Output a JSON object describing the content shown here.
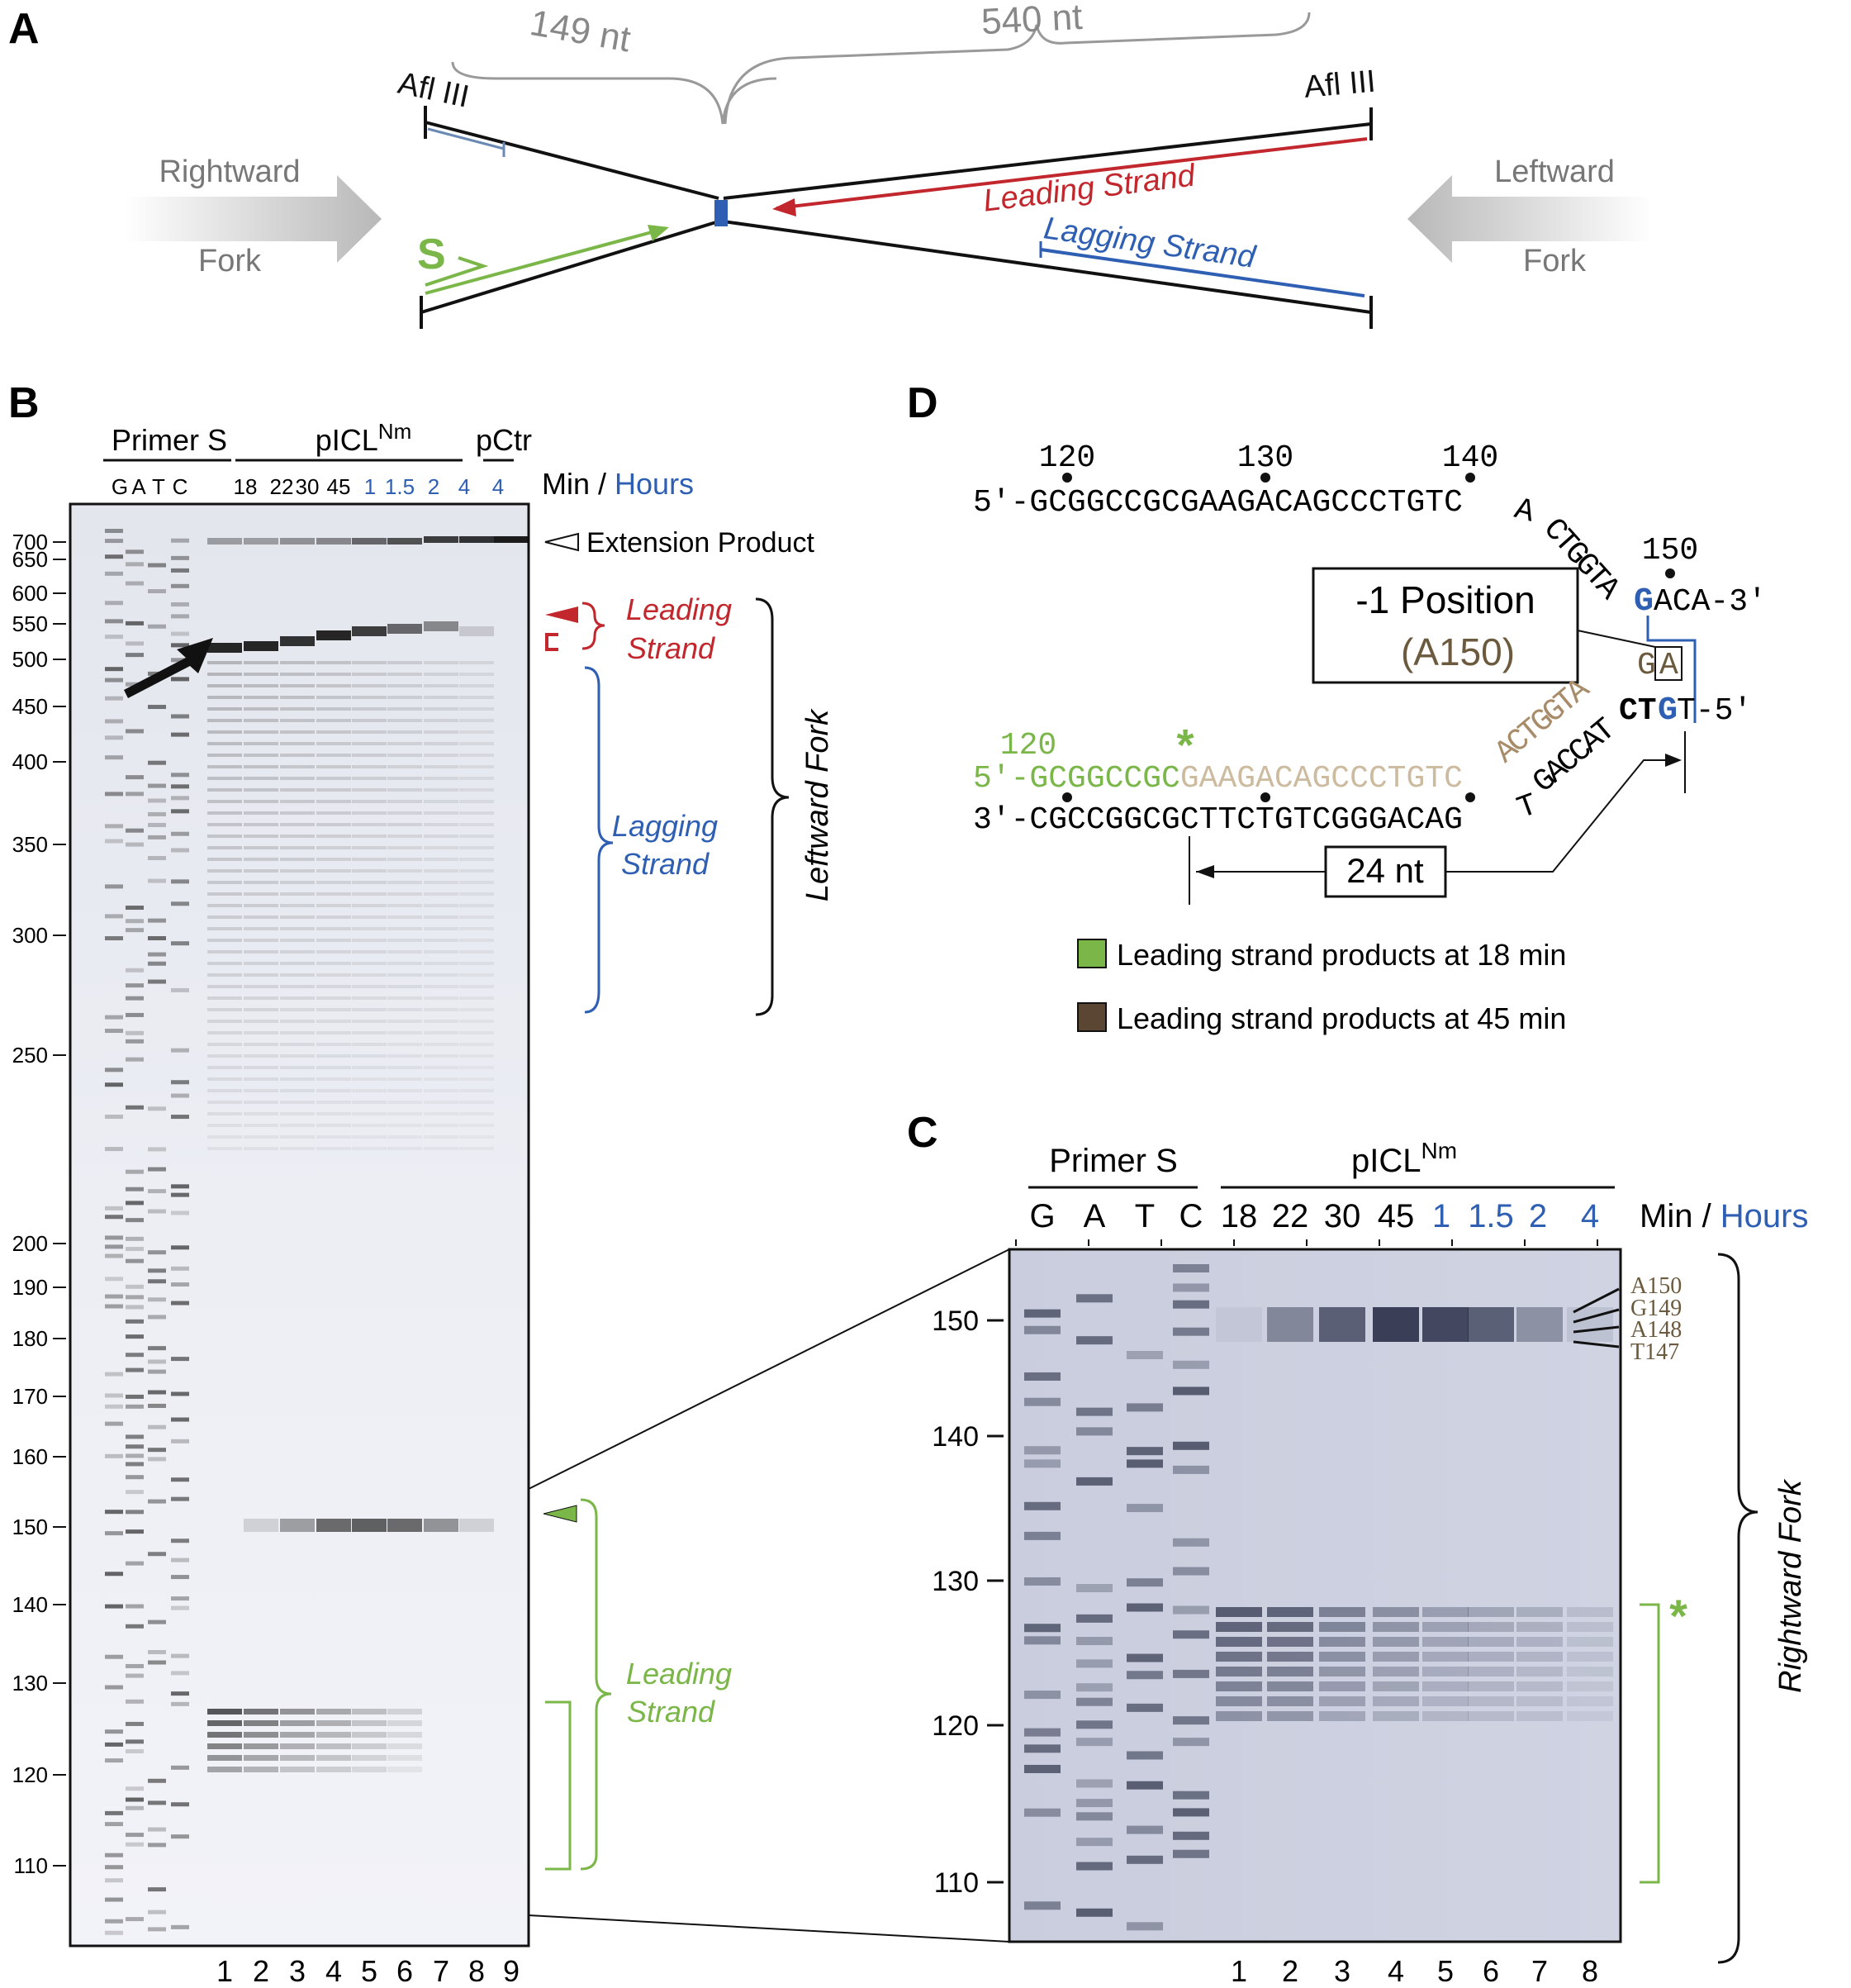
{
  "panel_letters": {
    "a": "A",
    "b": "B",
    "c": "C",
    "d": "D"
  },
  "colors": {
    "leading_red": "#c1272d",
    "lagging_blue": "#2e5fb3",
    "leading_green": "#7ab648",
    "brown": "#6b5a3e",
    "gray": "#888888",
    "hours_blue": "#2e5fb3"
  },
  "panel_a": {
    "left_length": "149 nt",
    "right_length": "540 nt",
    "site_left": "Afl III",
    "site_right": "Afl III",
    "rightward_1": "Rightward",
    "rightward_2": "Fork",
    "leftward_1": "Leftward",
    "leftward_2": "Fork",
    "leading_strand": "Leading Strand",
    "lagging_strand": "Lagging Strand",
    "primer_label": "S"
  },
  "panel_b": {
    "header_primer": "Primer S",
    "header_picl": "pICL",
    "header_picl_sup": "Nm",
    "header_pctr": "pCtr",
    "seq_lanes": [
      "G",
      "A",
      "T",
      "C"
    ],
    "time_min": [
      "18",
      "22",
      "30",
      "45"
    ],
    "time_hours": [
      "1",
      "1.5",
      "2",
      "4"
    ],
    "pctr_time": "4",
    "unit_min": "Min",
    "unit_sep": " / ",
    "unit_hours": "Hours",
    "size_markers": [
      "700",
      "650",
      "600",
      "550",
      "500",
      "450",
      "400",
      "350",
      "300",
      "250",
      "200",
      "190",
      "180",
      "170",
      "160",
      "150",
      "140",
      "130",
      "120",
      "110"
    ],
    "extension_product": "Extension Product",
    "leading_1": "Leading",
    "leading_2": "Strand",
    "lagging_1": "Lagging",
    "lagging_2": "Strand",
    "leftward_fork": "Leftward Fork",
    "green_leading_1": "Leading",
    "green_leading_2": "Strand",
    "lane_numbers": [
      "1",
      "2",
      "3",
      "4",
      "5",
      "6",
      "7",
      "8",
      "9"
    ]
  },
  "panel_c": {
    "header_primer": "Primer S",
    "header_picl": "pICL",
    "header_picl_sup": "Nm",
    "seq_lanes": [
      "G",
      "A",
      "T",
      "C"
    ],
    "time_min": [
      "18",
      "22",
      "30",
      "45"
    ],
    "time_hours": [
      "1",
      "1.5",
      "2",
      "4"
    ],
    "unit_min": "Min",
    "unit_sep": " / ",
    "unit_hours": "Hours",
    "size_markers": [
      "150",
      "140",
      "130",
      "120",
      "110"
    ],
    "bands": [
      "A150",
      "G149",
      "A148",
      "T147"
    ],
    "rightward_fork": "Rightward Fork",
    "asterisk": "*",
    "lane_numbers": [
      "1",
      "2",
      "3",
      "4",
      "5",
      "6",
      "7",
      "8"
    ]
  },
  "panel_d": {
    "top_positions": [
      "120",
      "130",
      "140"
    ],
    "top_seq_main": "5'-GCGGCCGCGAAGACAGCCCTGTC",
    "top_seq_a": "A",
    "top_seq_diag": "CTGGTA",
    "top_pos_150": "150",
    "top_g": "G",
    "top_end": "ACA-3'",
    "minus1_line1": "-1 Position",
    "minus1_line2": "(A150)",
    "box_g": "G",
    "box_a": "A",
    "bottom_ct": "CT",
    "bottom_g": "G",
    "bottom_end": "T-5'",
    "pos120_green": "120",
    "asterisk": "*",
    "green_seq": "5'-GCGGCCGC",
    "tan_seq": "GAAGACAGCCCTGTC",
    "brown_diag": "ACTGGTA",
    "template_seq": "3'-CGCCGGCGCTTCTGTCGGGACAG",
    "template_t": "T",
    "template_diag": "GACCAT",
    "span_label": "24 nt",
    "legend_green": "Leading strand products at 18 min",
    "legend_brown": "Leading strand products at 45 min"
  }
}
